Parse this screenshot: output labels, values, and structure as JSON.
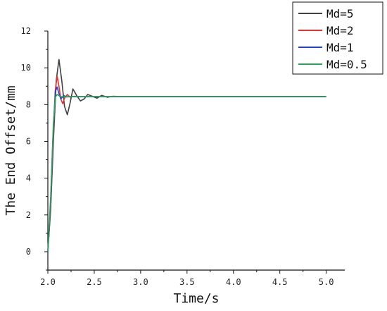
{
  "chart_data": {
    "type": "line",
    "title": "",
    "xlabel": "Time/s",
    "ylabel": "The End Offset/mm",
    "xlim": [
      2.0,
      5.2
    ],
    "ylim": [
      -1,
      12
    ],
    "xticks": [
      "2.0",
      "2.5",
      "3.0",
      "3.5",
      "4.0",
      "4.5",
      "5.0"
    ],
    "yticks": [
      "0",
      "2",
      "4",
      "6",
      "8",
      "10",
      "12"
    ],
    "grid": false,
    "legend_position": "top-right",
    "series": [
      {
        "name": "Md=5",
        "color": "#404040",
        "x": [
          2.0,
          2.03,
          2.06,
          2.09,
          2.12,
          2.15,
          2.18,
          2.21,
          2.24,
          2.27,
          2.31,
          2.35,
          2.39,
          2.43,
          2.48,
          2.53,
          2.58,
          2.64,
          2.7,
          2.8,
          5.0
        ],
        "y": [
          0,
          2.3,
          6.0,
          9.3,
          10.45,
          9.3,
          7.9,
          7.45,
          8.1,
          8.85,
          8.5,
          8.2,
          8.3,
          8.55,
          8.45,
          8.35,
          8.5,
          8.4,
          8.45,
          8.43,
          8.43
        ]
      },
      {
        "name": "Md=2",
        "color": "#e8312e",
        "x": [
          2.0,
          2.03,
          2.06,
          2.08,
          2.1,
          2.12,
          2.14,
          2.16,
          2.18,
          2.21,
          2.24,
          2.28,
          2.35,
          5.0
        ],
        "y": [
          0,
          2.5,
          6.4,
          8.8,
          9.55,
          9.0,
          8.3,
          8.05,
          8.35,
          8.55,
          8.4,
          8.45,
          8.43,
          8.43
        ]
      },
      {
        "name": "Md=1",
        "color": "#2140d8",
        "x": [
          2.0,
          2.03,
          2.06,
          2.08,
          2.1,
          2.12,
          2.14,
          2.17,
          2.2,
          2.25,
          5.0
        ],
        "y": [
          0,
          2.7,
          6.8,
          8.7,
          8.95,
          8.6,
          8.3,
          8.5,
          8.42,
          8.43,
          8.43
        ]
      },
      {
        "name": "Md=0.5",
        "color": "#2aa35a",
        "x": [
          2.0,
          2.03,
          2.06,
          2.08,
          2.1,
          2.13,
          2.16,
          2.2,
          5.0
        ],
        "y": [
          0,
          3.0,
          7.0,
          8.4,
          8.55,
          8.45,
          8.42,
          8.43,
          8.43
        ]
      }
    ]
  }
}
